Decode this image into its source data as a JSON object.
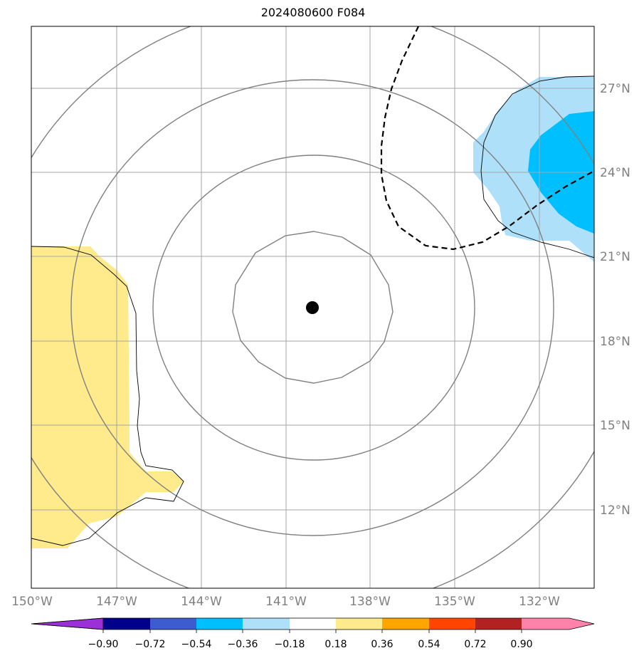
{
  "title": "2024080600 F084",
  "map": {
    "lon_range": [
      -150,
      -130.5
    ],
    "lat_range": [
      9.2,
      29.1
    ],
    "center_marker": {
      "lon": -140.1,
      "lat": 19.2
    },
    "longitude_labels": [
      {
        "lon": -150,
        "text": "150°W"
      },
      {
        "lon": -147,
        "text": "147°W"
      },
      {
        "lon": -144,
        "text": "144°W"
      },
      {
        "lon": -141,
        "text": "141°W"
      },
      {
        "lon": -138,
        "text": "138°W"
      },
      {
        "lon": -135,
        "text": "135°W"
      },
      {
        "lon": -132,
        "text": "132°W"
      }
    ],
    "latitude_labels": [
      {
        "lat": 27,
        "text": "27°N"
      },
      {
        "lat": 24,
        "text": "24°N"
      },
      {
        "lat": 21,
        "text": "21°N"
      },
      {
        "lat": 18,
        "text": "18°N"
      },
      {
        "lat": 15,
        "text": "15°N"
      },
      {
        "lat": 12,
        "text": "12°N"
      }
    ],
    "grid": true,
    "range_rings": 4
  },
  "colorbar": {
    "colors": [
      "#9b30d8",
      "#00008b",
      "#3d5ccf",
      "#00bfff",
      "#aee0fa",
      "#ffffff",
      "#ffea8c",
      "#ffa500",
      "#ff4500",
      "#b22222",
      "#ff82ab"
    ],
    "labels": [
      "−0.90",
      "−0.72",
      "−0.54",
      "−0.36",
      "−0.18",
      "0.18",
      "0.36",
      "0.54",
      "0.72",
      "0.90"
    ]
  }
}
